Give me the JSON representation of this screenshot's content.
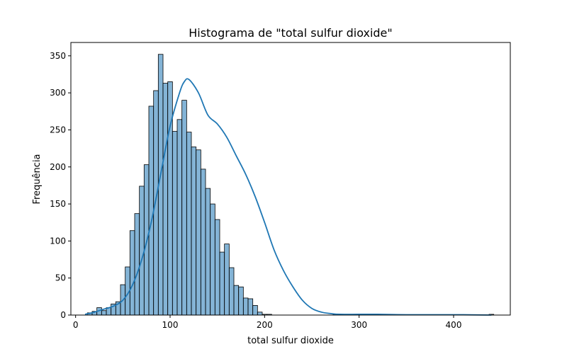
{
  "chart_data": {
    "type": "bar",
    "title": "Histograma de \"total sulfur dioxide\"",
    "xlabel": "total sulfur dioxide",
    "ylabel": "Frequência",
    "xlim": [
      -5,
      460
    ],
    "ylim": [
      0,
      368
    ],
    "xticks": [
      0,
      100,
      200,
      300,
      400
    ],
    "yticks": [
      0,
      50,
      100,
      150,
      200,
      250,
      300,
      350
    ],
    "grid": false,
    "bar_color": "#1f77b4",
    "bar_fill_opacity": 0.55,
    "line_color": "#1f77b4",
    "bin_width": 5,
    "bin_start": 12.5,
    "values": [
      3,
      5,
      10,
      6,
      10,
      15,
      18,
      41,
      65,
      114,
      137,
      174,
      203,
      282,
      303,
      352,
      313,
      315,
      248,
      264,
      290,
      247,
      227,
      223,
      197,
      171,
      150,
      129,
      85,
      96,
      64,
      40,
      38,
      23,
      22,
      13,
      4,
      1,
      1,
      0,
      0,
      0,
      0,
      0,
      0,
      0,
      0,
      0,
      0,
      0,
      0,
      0,
      1,
      1,
      0,
      0,
      0,
      0,
      0,
      0,
      0,
      0,
      0,
      0,
      0,
      0,
      0,
      0,
      0,
      0,
      0,
      0,
      0,
      0,
      0,
      0,
      0,
      0,
      0,
      0,
      0,
      0,
      0,
      0,
      0,
      1
    ],
    "kde": {
      "x": [
        10,
        20,
        30,
        40,
        50,
        60,
        70,
        80,
        90,
        100,
        110,
        115,
        120,
        130,
        140,
        150,
        160,
        170,
        180,
        190,
        200,
        210,
        220,
        230,
        240,
        250,
        260,
        270,
        280,
        300,
        320,
        350,
        400,
        440
      ],
      "y": [
        1,
        4,
        8,
        12,
        20,
        40,
        75,
        125,
        190,
        255,
        300,
        315,
        318,
        300,
        270,
        258,
        240,
        215,
        190,
        160,
        125,
        88,
        60,
        38,
        20,
        9,
        4,
        2,
        1,
        1,
        1,
        0.5,
        0.5,
        0
      ]
    }
  }
}
